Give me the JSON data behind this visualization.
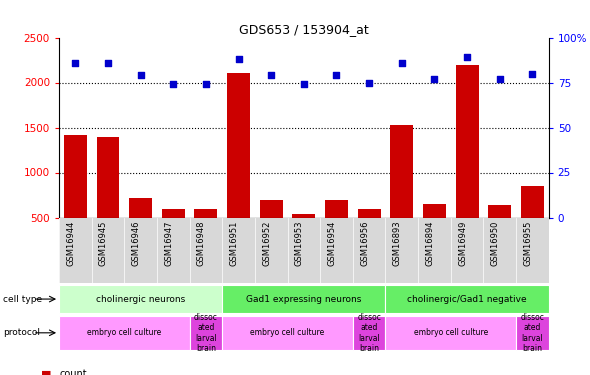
{
  "title": "GDS653 / 153904_at",
  "samples": [
    "GSM16944",
    "GSM16945",
    "GSM16946",
    "GSM16947",
    "GSM16948",
    "GSM16951",
    "GSM16952",
    "GSM16953",
    "GSM16954",
    "GSM16956",
    "GSM16893",
    "GSM16894",
    "GSM16949",
    "GSM16950",
    "GSM16955"
  ],
  "counts": [
    1420,
    1400,
    720,
    600,
    600,
    2110,
    690,
    540,
    690,
    600,
    1530,
    650,
    2200,
    640,
    850
  ],
  "percentiles": [
    86,
    86,
    79,
    74,
    74,
    88,
    79,
    74,
    79,
    75,
    86,
    77,
    89,
    77,
    80
  ],
  "ylim_left": [
    500,
    2500
  ],
  "ylim_right": [
    0,
    100
  ],
  "yticks_left": [
    500,
    1000,
    1500,
    2000,
    2500
  ],
  "ytick_labels_left": [
    "500",
    "1000",
    "1500",
    "2000",
    "2500"
  ],
  "yticks_right": [
    0,
    25,
    50,
    75,
    100
  ],
  "ytick_labels_right": [
    "0",
    "25",
    "50",
    "75",
    "100%"
  ],
  "bar_color": "#cc0000",
  "dot_color": "#0000cc",
  "gridline_ticks": [
    1000,
    1500,
    2000
  ],
  "cell_type_groups": [
    {
      "label": "cholinergic neurons",
      "start": 0,
      "end": 5,
      "color": "#ccffcc"
    },
    {
      "label": "Gad1 expressing neurons",
      "start": 5,
      "end": 10,
      "color": "#66ee66"
    },
    {
      "label": "cholinergic/Gad1 negative",
      "start": 10,
      "end": 15,
      "color": "#66ee66"
    }
  ],
  "protocol_groups": [
    {
      "label": "embryo cell culture",
      "start": 0,
      "end": 4,
      "color": "#ff99ff"
    },
    {
      "label": "dissoc\nated\nlarval\nbrain",
      "start": 4,
      "end": 5,
      "color": "#dd44dd"
    },
    {
      "label": "embryo cell culture",
      "start": 5,
      "end": 9,
      "color": "#ff99ff"
    },
    {
      "label": "dissoc\nated\nlarval\nbrain",
      "start": 9,
      "end": 10,
      "color": "#dd44dd"
    },
    {
      "label": "embryo cell culture",
      "start": 10,
      "end": 14,
      "color": "#ff99ff"
    },
    {
      "label": "dissoc\nated\nlarval\nbrain",
      "start": 14,
      "end": 15,
      "color": "#dd44dd"
    }
  ]
}
